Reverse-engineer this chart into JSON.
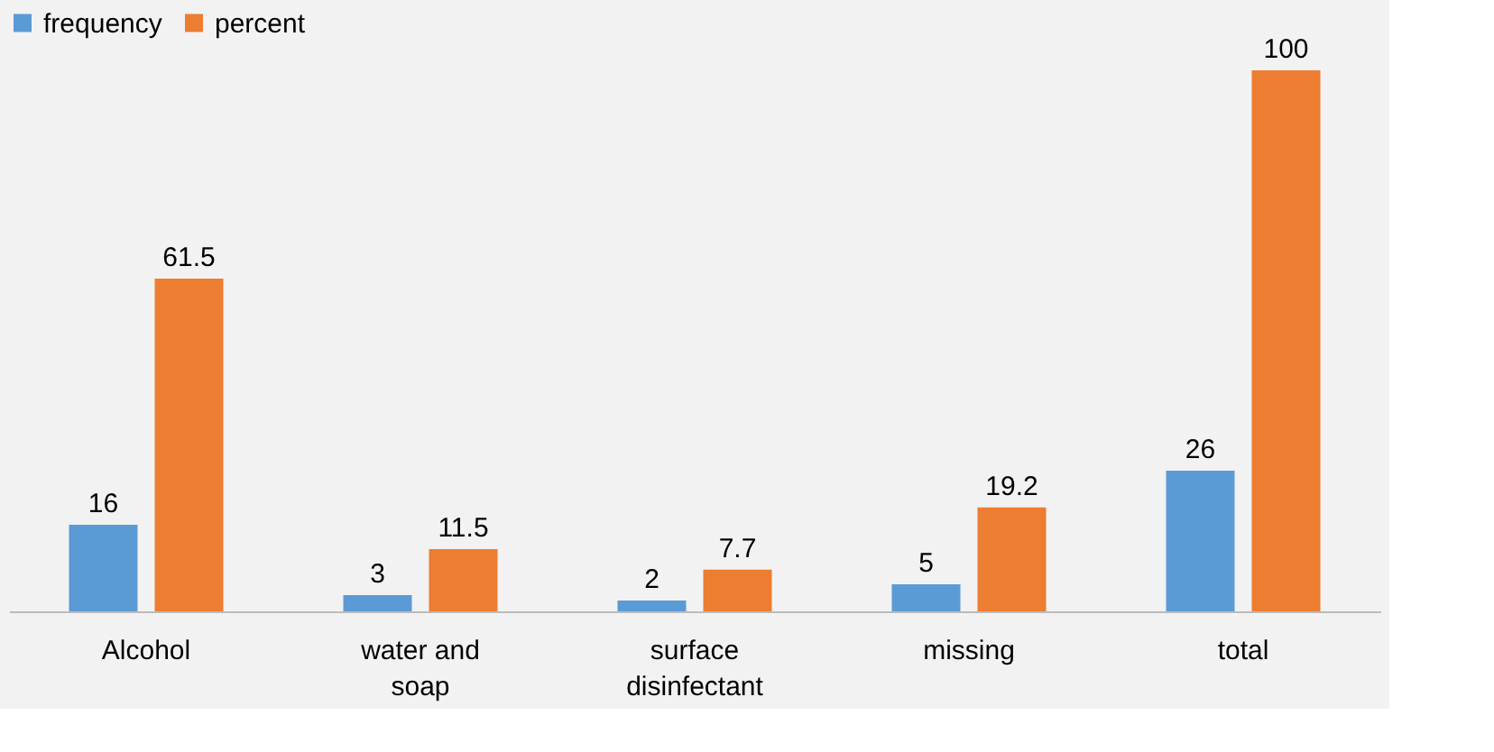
{
  "chart_data": {
    "type": "bar",
    "categories": [
      "Alcohol",
      "water and soap",
      "surface disinfectant",
      "missing",
      "total"
    ],
    "series": [
      {
        "name": "frequency",
        "color": "#5b9bd5",
        "values": [
          16,
          3,
          2,
          5,
          26
        ]
      },
      {
        "name": "percent",
        "color": "#ed7d31",
        "values": [
          61.5,
          11.5,
          7.7,
          19.2,
          100
        ]
      }
    ],
    "data_labels": true,
    "legend": "top",
    "grid": false
  }
}
